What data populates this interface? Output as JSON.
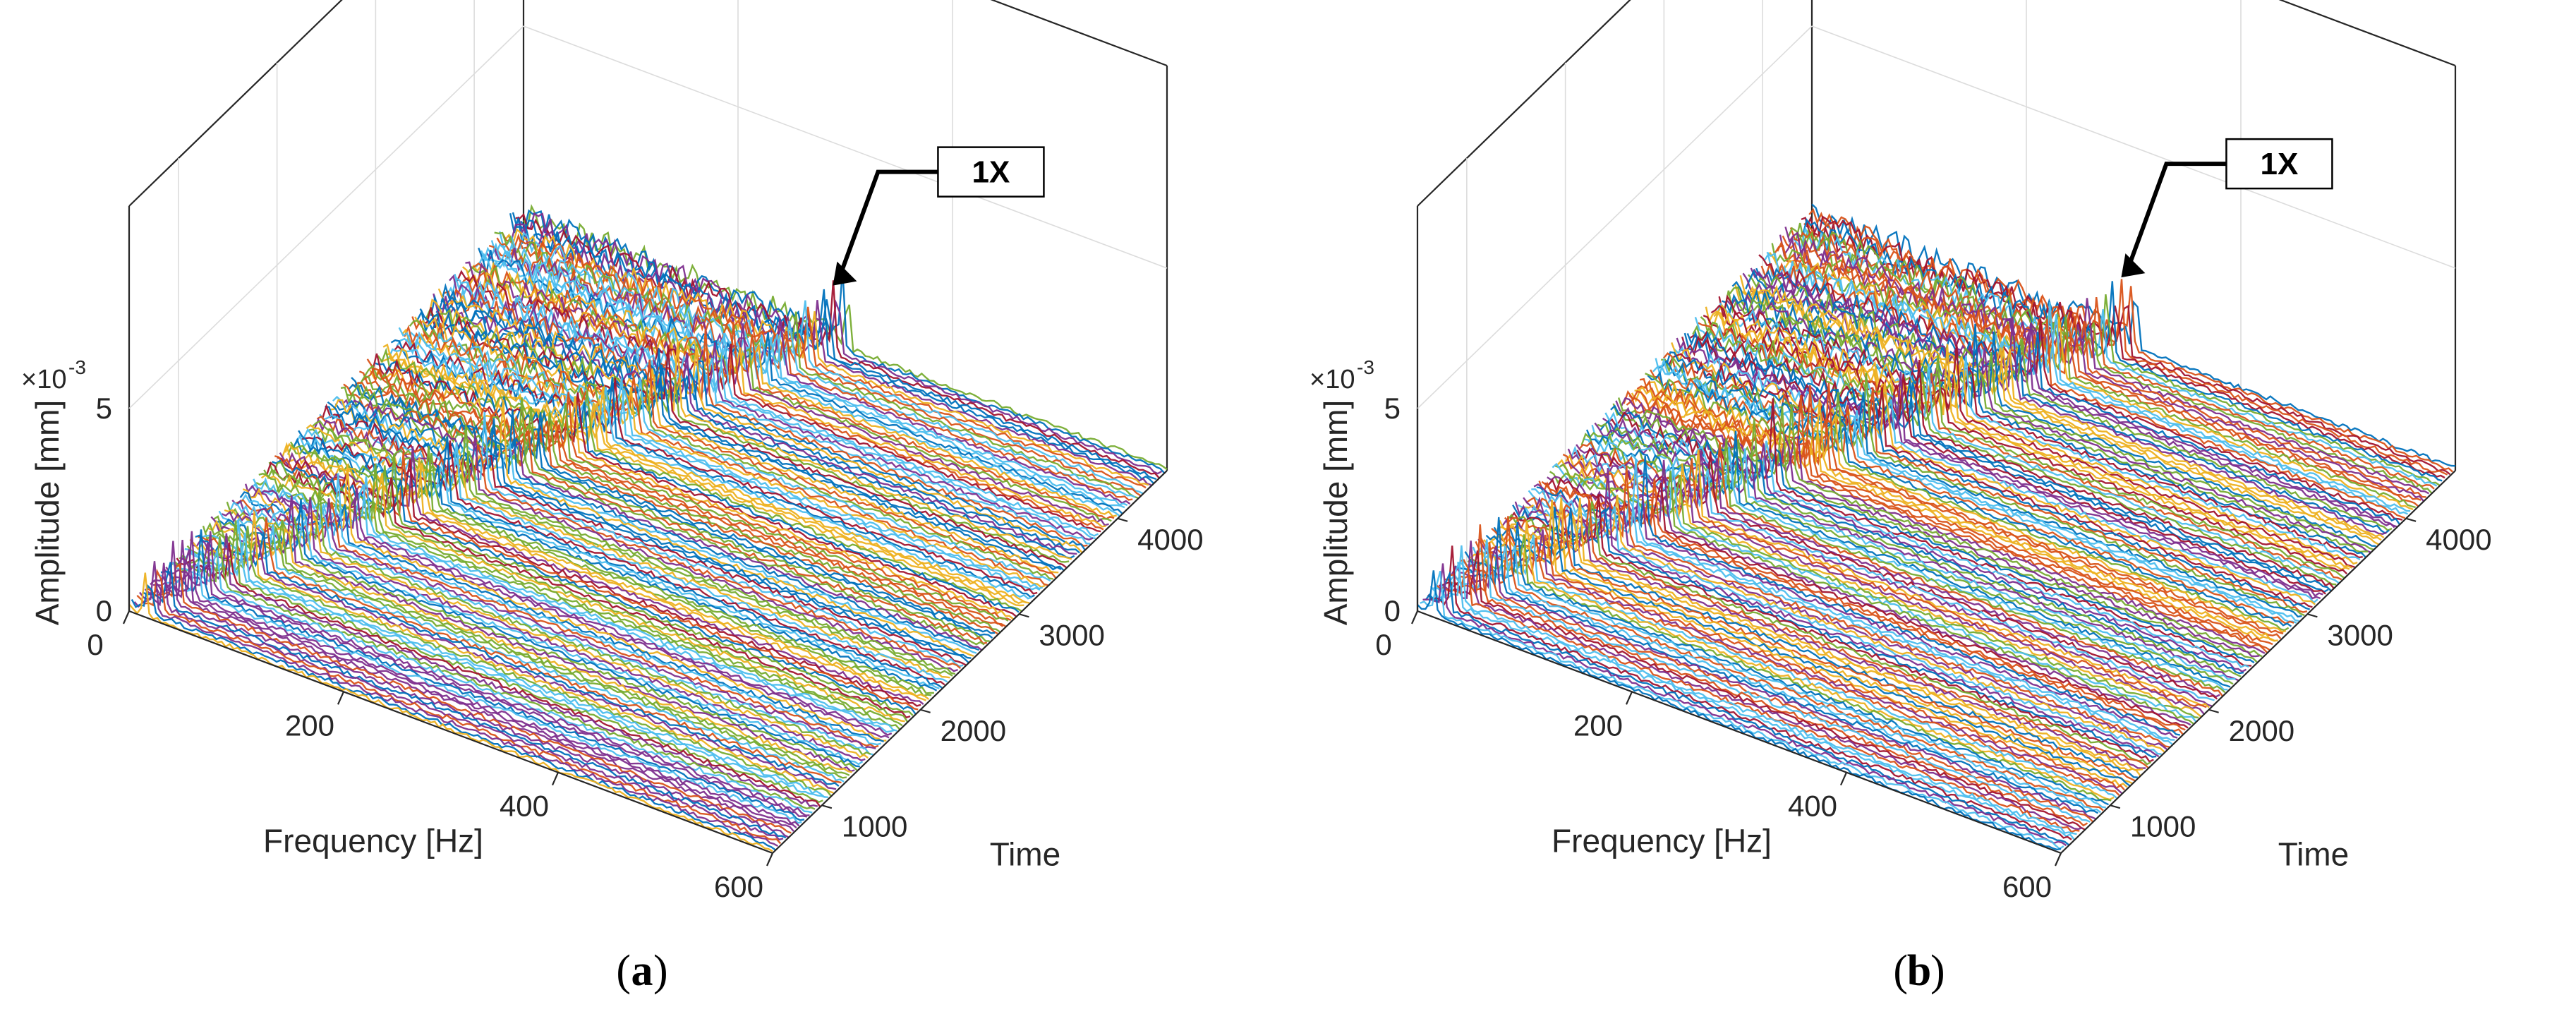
{
  "figure": {
    "exponent_prefix": "×10",
    "exponent_power": "-3"
  },
  "chart_data": [
    {
      "type": "waterfall-3d",
      "caption": "a",
      "xlabel": "Frequency [Hz]",
      "ylabel": "Time",
      "zlabel": "Amplitude [mm]",
      "xlim": [
        0,
        600
      ],
      "ylim": [
        500,
        4500
      ],
      "zlim": [
        0,
        0.005
      ],
      "x_ticks": [
        "0",
        "200",
        "400",
        "600"
      ],
      "y_ticks": [
        "1000",
        "2000",
        "3000",
        "4000"
      ],
      "z_ticks": [
        "0",
        "5"
      ],
      "annotation": {
        "text": "1X",
        "x": 295,
        "y": 4400,
        "z": 0.0017
      },
      "ridges": [
        {
          "name": "1X",
          "frequency_start": 15,
          "frequency_end": 295,
          "time_start": 500,
          "time_end": 4400,
          "amplitude": 0.0017
        }
      ],
      "grid": true,
      "seed": 11
    },
    {
      "type": "waterfall-3d",
      "caption": "b",
      "xlabel": "Frequency [Hz]",
      "ylabel": "Time",
      "zlabel": "Amplitude [mm]",
      "xlim": [
        0,
        600
      ],
      "ylim": [
        500,
        4500
      ],
      "zlim": [
        0,
        0.005
      ],
      "x_ticks": [
        "0",
        "200",
        "400",
        "600"
      ],
      "y_ticks": [
        "1000",
        "2000",
        "3000",
        "4000"
      ],
      "z_ticks": [
        "0",
        "5"
      ],
      "annotation": {
        "text": "1X",
        "x": 295,
        "y": 4400,
        "z": 0.0019
      },
      "ridges": [
        {
          "name": "1X",
          "frequency_start": 15,
          "frequency_end": 295,
          "time_start": 500,
          "time_end": 4400,
          "amplitude": 0.0019
        }
      ],
      "grid": true,
      "seed": 29
    }
  ]
}
